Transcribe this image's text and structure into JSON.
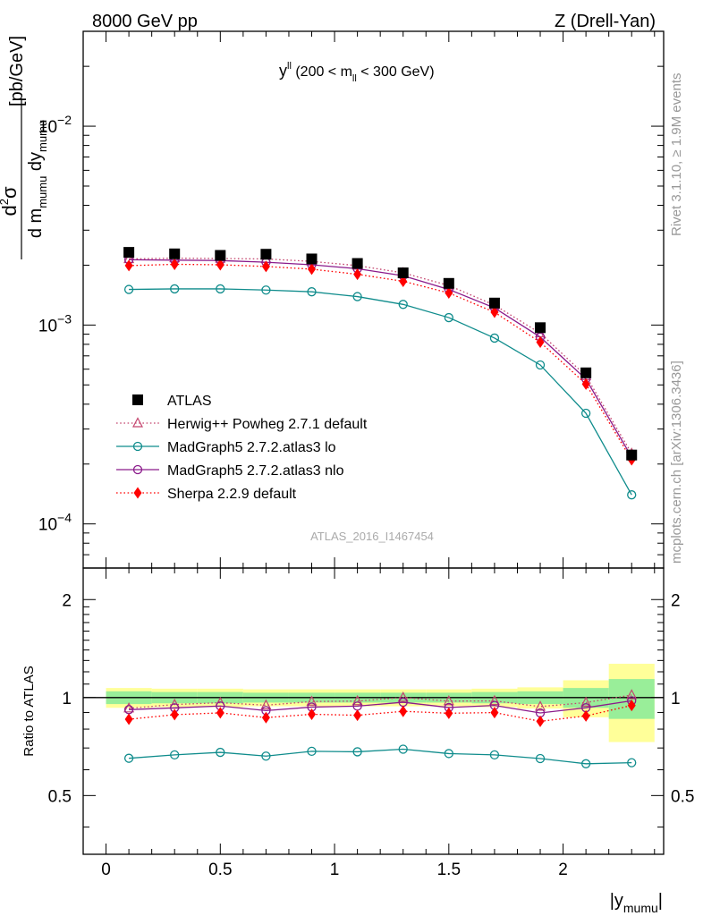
{
  "header": {
    "left": "8000 GeV pp",
    "right": "Z (Drell-Yan)"
  },
  "side_text": {
    "rivet": "Rivet 3.1.10, ≥ 1.9M events",
    "mcplots": "mcplots.cern.ch [arXiv:1306.3436]"
  },
  "watermark": "ATLAS_2016_I1467454",
  "chart_data": {
    "type": "scatter",
    "title": "y^ll (200 < m_ll < 300 GeV)",
    "title_main": "y",
    "title_sup": "ll",
    "title_rest_1": " (200 < m",
    "title_sub": "ll",
    "title_rest_2": " < 300 GeV)",
    "xlabel": "|y_mumu|",
    "xlabel_main": "|y",
    "xlabel_sub": "mumu",
    "xlabel_end": "|",
    "ylabel": "d²σ / d m_mumu dy_mumu [pb/GeV]",
    "ylabel_num_d": "d",
    "ylabel_num_sup": "2",
    "ylabel_num_sigma": "σ",
    "ylabel_den_1": "d m",
    "ylabel_den_sub1": "mumu",
    "ylabel_den_2": " dy",
    "ylabel_den_sub2": "mumu",
    "ylabel_unit": "[pb/GeV]",
    "ratio_ylabel": "Ratio to ATLAS",
    "xlim": [
      -0.1,
      2.44
    ],
    "ylim": [
      6e-05,
      0.03
    ],
    "yscale": "log",
    "ratio_ylim": [
      0.33,
      2.5
    ],
    "x_ticks": [
      "0",
      "0.5",
      "1",
      "1.5",
      "2"
    ],
    "x_tick_values": [
      0,
      0.5,
      1,
      1.5,
      2
    ],
    "y_ticks": [
      {
        "value": 0.01,
        "base": "10",
        "exp": "−2"
      },
      {
        "value": 0.001,
        "base": "10",
        "exp": "−3"
      },
      {
        "value": 0.0001,
        "base": "10",
        "exp": "−4"
      }
    ],
    "ratio_ticks": [
      "0.5",
      "1",
      "2"
    ],
    "ratio_tick_values": [
      0.5,
      1,
      2
    ],
    "legend_position": "lower-left",
    "x": [
      0.1,
      0.3,
      0.5,
      0.7,
      0.9,
      1.1,
      1.3,
      1.5,
      1.7,
      1.9,
      2.1,
      2.3
    ],
    "bin_edges": [
      0,
      0.2,
      0.4,
      0.6,
      0.8,
      1.0,
      1.2,
      1.4,
      1.6,
      1.8,
      2.0,
      2.2,
      2.4
    ],
    "atlas_band_inner": [
      0.045,
      0.04,
      0.04,
      0.035,
      0.035,
      0.035,
      0.035,
      0.035,
      0.04,
      0.045,
      0.07,
      0.14
    ],
    "atlas_band_outer": [
      0.07,
      0.065,
      0.065,
      0.06,
      0.06,
      0.06,
      0.06,
      0.06,
      0.065,
      0.075,
      0.13,
      0.27
    ],
    "series": [
      {
        "name": "ATLAS",
        "color": "#000000",
        "marker": "square",
        "values": [
          0.00232,
          0.00228,
          0.00224,
          0.00227,
          0.00215,
          0.00204,
          0.00183,
          0.00162,
          0.00129,
          0.00097,
          0.000575,
          0.000222
        ]
      },
      {
        "name": "Herwig++ Powheg 2.7.1 default",
        "color": "#c4456e",
        "marker": "triangle",
        "line": "dotted",
        "values": [
          0.00215,
          0.00217,
          0.00216,
          0.00215,
          0.00209,
          0.00199,
          0.00183,
          0.00158,
          0.00126,
          0.00091,
          0.000555,
          0.000226
        ]
      },
      {
        "name": "MadGraph5 2.7.2.atlas3 lo",
        "color": "#0f8c8c",
        "marker": "circle",
        "line": "solid",
        "values": [
          0.00151,
          0.00152,
          0.00152,
          0.0015,
          0.00147,
          0.00139,
          0.00127,
          0.00109,
          0.00086,
          0.00063,
          0.00036,
          0.00014
        ]
      },
      {
        "name": "MadGraph5 2.7.2.atlas3 nlo",
        "color": "#8b1a8b",
        "marker": "circle",
        "line": "solid",
        "values": [
          0.00213,
          0.00212,
          0.00211,
          0.00207,
          0.00201,
          0.00192,
          0.00177,
          0.00151,
          0.00122,
          0.00087,
          0.000535,
          0.000217
        ]
      },
      {
        "name": "Sherpa 2.2.9 default",
        "color": "#ff0000",
        "marker": "diamond",
        "line": "dotted",
        "values": [
          0.00199,
          0.00202,
          0.00201,
          0.00197,
          0.00191,
          0.0018,
          0.00166,
          0.00145,
          0.00116,
          0.00082,
          0.000505,
          0.00021
        ]
      }
    ]
  }
}
